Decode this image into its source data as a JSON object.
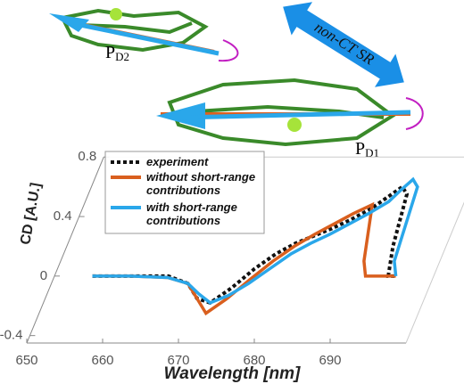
{
  "chart_data": {
    "type": "line",
    "y_label": "CD [A.U.]",
    "x_label": "Wavelength [nm]",
    "x": [
      655,
      660,
      665,
      668,
      670,
      672,
      674,
      676,
      678,
      680,
      682,
      684,
      686,
      688,
      690,
      691,
      692,
      693,
      694,
      695
    ],
    "series": [
      {
        "name": "experiment",
        "color": "#111111",
        "dash": true,
        "values": [
          0,
          0,
          0,
          -0.05,
          -0.15,
          -0.18,
          -0.08,
          0.05,
          0.15,
          0.22,
          0.27,
          0.32,
          0.38,
          0.45,
          0.55,
          0.6,
          0.55,
          0.2,
          0,
          0
        ]
      },
      {
        "name": "without short-range contributions",
        "color": "#d95f1e",
        "dash": false,
        "values": [
          0,
          0,
          -0.01,
          -0.05,
          -0.15,
          -0.25,
          -0.15,
          -0.02,
          0.1,
          0.2,
          0.28,
          0.35,
          0.42,
          0.48,
          0.1,
          0,
          0,
          0,
          0,
          0
        ]
      },
      {
        "name": "with short-range contributions",
        "color": "#2aa7ea",
        "dash": false,
        "values": [
          0,
          0,
          -0.01,
          -0.05,
          -0.12,
          -0.18,
          -0.13,
          -0.05,
          0.05,
          0.15,
          0.22,
          0.28,
          0.35,
          0.42,
          0.5,
          0.58,
          0.65,
          0.6,
          0.1,
          0
        ]
      }
    ],
    "xlim": [
      650,
      700
    ],
    "ylim": [
      -0.45,
      0.8
    ],
    "xticks": [
      650,
      660,
      670,
      680,
      690
    ],
    "yticks": [
      -0.4,
      0,
      0.4,
      0.8
    ],
    "annotations": {
      "pd2": {
        "label": "P",
        "sub": "D2"
      },
      "pd1": {
        "label": "P",
        "sub": "D1"
      },
      "arrow": "non-CT SR"
    }
  }
}
